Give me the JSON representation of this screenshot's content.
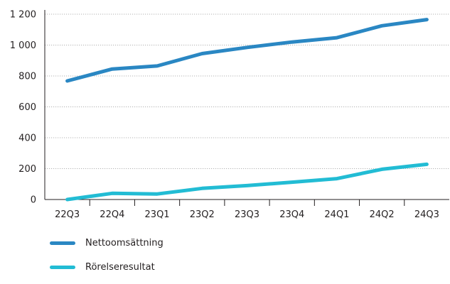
{
  "chart_data": {
    "type": "line",
    "categories": [
      "22Q3",
      "22Q4",
      "23Q1",
      "23Q2",
      "23Q3",
      "23Q4",
      "24Q1",
      "24Q2",
      "24Q3"
    ],
    "series": [
      {
        "name": "Nettoomsättning",
        "color": "#2a87c3",
        "values": [
          768,
          845,
          865,
          945,
          985,
          1020,
          1048,
          1125,
          1165
        ]
      },
      {
        "name": "Rörelseresultat",
        "color": "#22bcd4",
        "values": [
          0,
          40,
          36,
          72,
          90,
          112,
          135,
          196,
          228
        ]
      }
    ],
    "yticks": [
      "0",
      "200",
      "400",
      "600",
      "800",
      "1 000",
      "1 200"
    ],
    "ylim": [
      0,
      1200
    ],
    "grid": true,
    "legend_position": "bottom-left"
  }
}
